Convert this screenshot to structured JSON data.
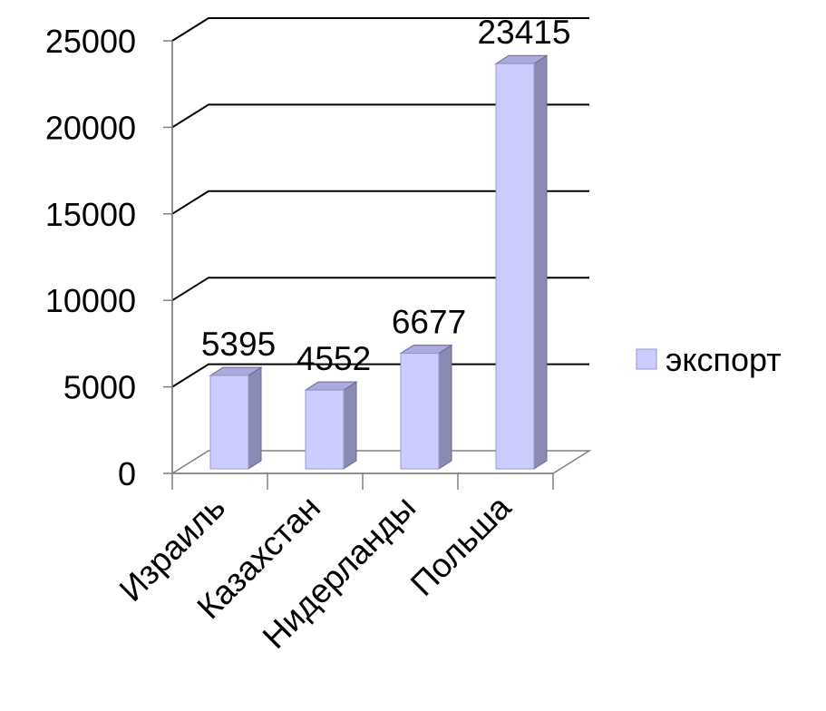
{
  "chart_data": {
    "type": "bar",
    "categories": [
      "Израиль",
      "Казахстан",
      "Нидерланды",
      "Польша"
    ],
    "series": [
      {
        "name": "экспорт",
        "values": [
          5395,
          4552,
          6677,
          23415
        ]
      }
    ],
    "data_labels": [
      "5395",
      "4552",
      "6677",
      "23415"
    ],
    "yticks": [
      "0",
      "5000",
      "10000",
      "15000",
      "20000",
      "25000"
    ],
    "ylim": [
      0,
      25000
    ],
    "grid": true,
    "legend_position": "right",
    "style_3d": true,
    "colors": {
      "bar_front": "#ccccff",
      "bar_side": "#8a8ab4",
      "bar_top": "#aaaadd",
      "grid": "#000000",
      "legend_swatch": "#ccccff"
    }
  }
}
